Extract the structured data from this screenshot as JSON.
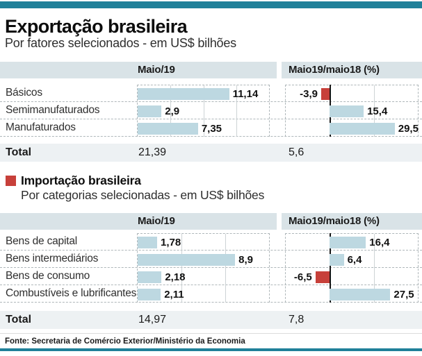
{
  "colors": {
    "teal": "#1f8099",
    "band": "#d9e3e7",
    "total-band": "#edf1f3",
    "bar-blue": "#bdd8e1",
    "bar-red": "#c7403a",
    "grid": "#aeb6b9"
  },
  "chart_data": [
    {
      "type": "bar",
      "orientation": "horizontal",
      "title": "Exportação brasileira",
      "subtitle": "Por fatores selecionados - em US$ bilhões",
      "categories": [
        "Básicos",
        "Semimanufaturados",
        "Manufaturados"
      ],
      "series": [
        {
          "name": "Maio/19",
          "unit": "US$ bilhões",
          "values": [
            11.14,
            2.9,
            7.35
          ],
          "labels": [
            "11,14",
            "2,9",
            "7,35"
          ],
          "xlim": [
            0,
            16
          ],
          "grid_step": 4
        },
        {
          "name": "Maio19/maio18 (%)",
          "unit": "%",
          "values": [
            -3.9,
            15.4,
            29.5
          ],
          "labels": [
            "-3,9",
            "15,4",
            "29,5"
          ],
          "xlim": [
            -20,
            40
          ],
          "grid_step": 20
        }
      ],
      "total": {
        "label": "Total",
        "value": "21,39",
        "pct": "5,6"
      },
      "grid": "dashed-box"
    },
    {
      "type": "bar",
      "orientation": "horizontal",
      "title": "Importação brasileira",
      "subtitle": "Por categorias selecionadas - em US$ bilhões",
      "categories": [
        "Bens de capital",
        "Bens intermediários",
        "Bens de consumo",
        "Combustíveis e lubrificantes"
      ],
      "series": [
        {
          "name": "Maio/19",
          "unit": "US$ bilhões",
          "values": [
            1.78,
            8.9,
            2.18,
            2.11
          ],
          "labels": [
            "1,78",
            "8,9",
            "2,18",
            "2,11"
          ],
          "xlim": [
            0,
            12
          ],
          "grid_step": 4
        },
        {
          "name": "Maio19/maio18 (%)",
          "unit": "%",
          "values": [
            16.4,
            6.4,
            -6.5,
            27.5
          ],
          "labels": [
            "16,4",
            "6,4",
            "-6,5",
            "27,5"
          ],
          "xlim": [
            -20,
            40
          ],
          "grid_step": 20
        }
      ],
      "total": {
        "label": "Total",
        "value": "14,97",
        "pct": "7,8"
      },
      "grid": "dashed-box"
    }
  ],
  "footer": {
    "source": "Fonte: Secretaria de Comércio Exterior/Ministério da Economia"
  }
}
